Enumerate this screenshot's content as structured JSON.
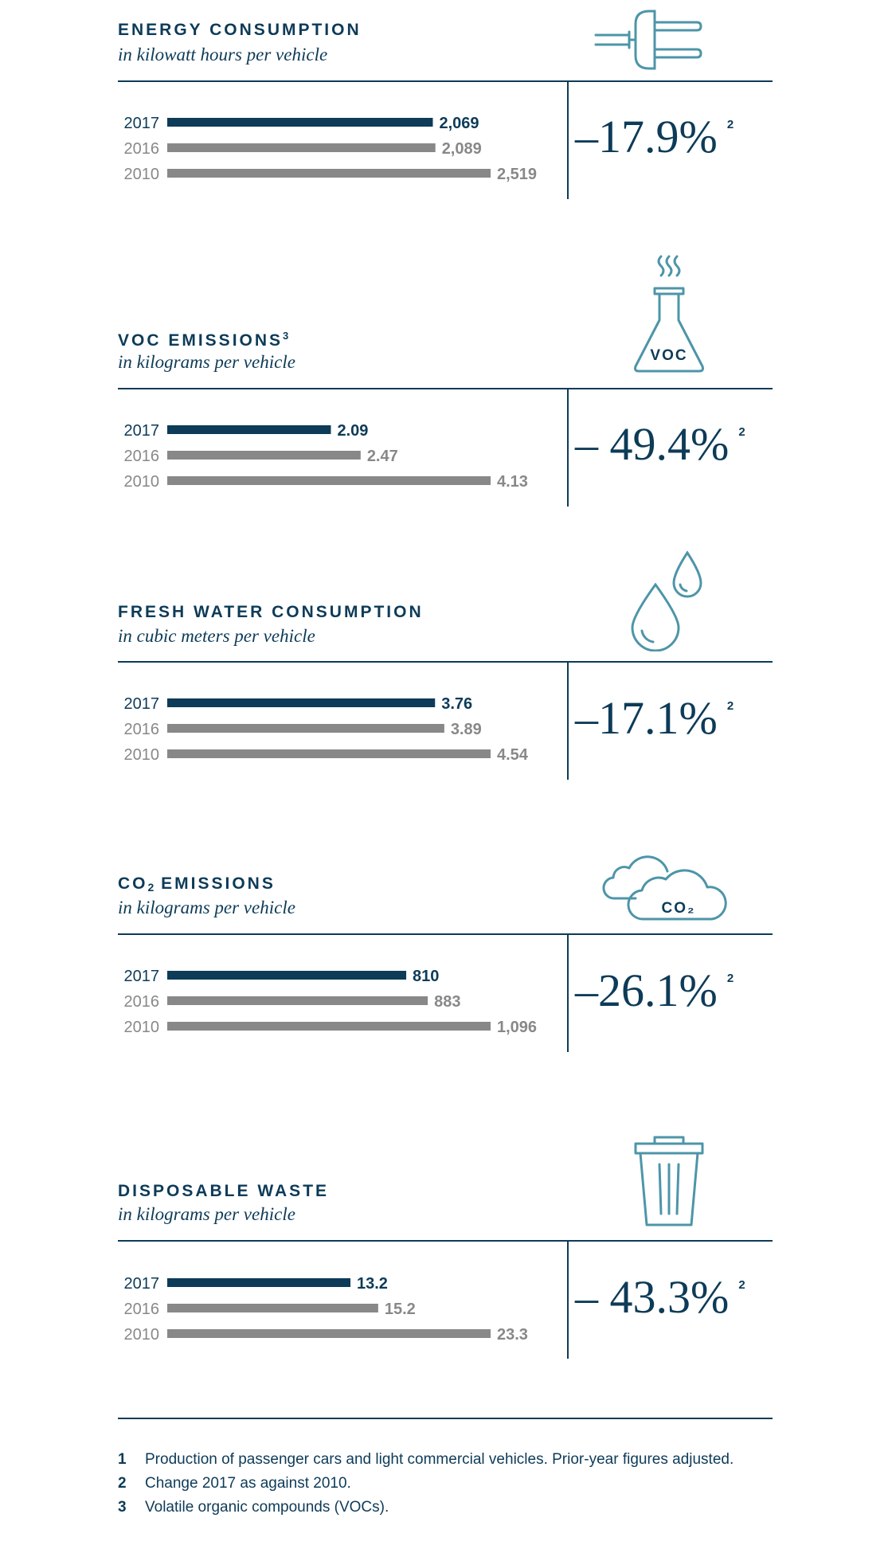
{
  "panels": [
    {
      "title": "ENERGY CONSUMPTION",
      "subtitle": "in kilowatt hours per vehicle",
      "icon": "plug-icon",
      "change": "–17.9%",
      "change_note": "2"
    },
    {
      "title": "VOC EMISSIONS",
      "title_sup": "3",
      "subtitle": "in kilograms per vehicle",
      "icon": "flask-icon",
      "icon_label": "VOC",
      "change": "– 49.4%",
      "change_note": "2"
    },
    {
      "title": "FRESH WATER CONSUMPTION",
      "subtitle": "in cubic meters per vehicle",
      "icon": "water-drops-icon",
      "change": "–17.1%",
      "change_note": "2"
    },
    {
      "title_pre": "CO",
      "title_sub": "2",
      "title_post": " EMISSIONS",
      "subtitle": "in kilograms per vehicle",
      "icon": "cloud-icon",
      "icon_label": "CO₂",
      "change": "–26.1%",
      "change_note": "2"
    },
    {
      "title": "DISPOSABLE WASTE",
      "subtitle": "in kilograms per vehicle",
      "icon": "trash-can-icon",
      "change": "– 43.3%",
      "change_note": "2"
    }
  ],
  "chart_data": [
    {
      "type": "bar",
      "orientation": "horizontal",
      "title": "ENERGY CONSUMPTION",
      "subtitle": "in kilowatt hours per vehicle",
      "categories": [
        "2017",
        "2016",
        "2010"
      ],
      "values": [
        2069,
        2089,
        2519
      ],
      "value_labels": [
        "2,069",
        "2,089",
        "2,519"
      ],
      "colors": [
        "#0d3b58",
        "#888888",
        "#888888"
      ]
    },
    {
      "type": "bar",
      "orientation": "horizontal",
      "title": "VOC EMISSIONS",
      "subtitle": "in kilograms per vehicle",
      "categories": [
        "2017",
        "2016",
        "2010"
      ],
      "values": [
        2.09,
        2.47,
        4.13
      ],
      "value_labels": [
        "2.09",
        "2.47",
        "4.13"
      ],
      "colors": [
        "#0d3b58",
        "#888888",
        "#888888"
      ]
    },
    {
      "type": "bar",
      "orientation": "horizontal",
      "title": "FRESH WATER CONSUMPTION",
      "subtitle": "in cubic meters per vehicle",
      "categories": [
        "2017",
        "2016",
        "2010"
      ],
      "values": [
        3.76,
        3.89,
        4.54
      ],
      "value_labels": [
        "3.76",
        "3.89",
        "4.54"
      ],
      "colors": [
        "#0d3b58",
        "#888888",
        "#888888"
      ]
    },
    {
      "type": "bar",
      "orientation": "horizontal",
      "title": "CO₂ EMISSIONS",
      "subtitle": "in kilograms per vehicle",
      "categories": [
        "2017",
        "2016",
        "2010"
      ],
      "values": [
        810,
        883,
        1096
      ],
      "value_labels": [
        "810",
        "883",
        "1,096"
      ],
      "colors": [
        "#0d3b58",
        "#888888",
        "#888888"
      ]
    },
    {
      "type": "bar",
      "orientation": "horizontal",
      "title": "DISPOSABLE WASTE",
      "subtitle": "in kilograms per vehicle",
      "categories": [
        "2017",
        "2016",
        "2010"
      ],
      "values": [
        13.2,
        15.2,
        23.3
      ],
      "value_labels": [
        "13.2",
        "15.2",
        "23.3"
      ],
      "colors": [
        "#0d3b58",
        "#888888",
        "#888888"
      ]
    }
  ],
  "footnotes": [
    {
      "num": "1",
      "text": "Production of passenger cars and light commercial vehicles. Prior-year figures adjusted."
    },
    {
      "num": "2",
      "text": "Change 2017 as against 2010."
    },
    {
      "num": "3",
      "text": "Volatile organic compounds (VOCs)."
    }
  ],
  "colors": {
    "navy": "#0d3b58",
    "gray": "#888888",
    "icon": "#4d95a8"
  }
}
